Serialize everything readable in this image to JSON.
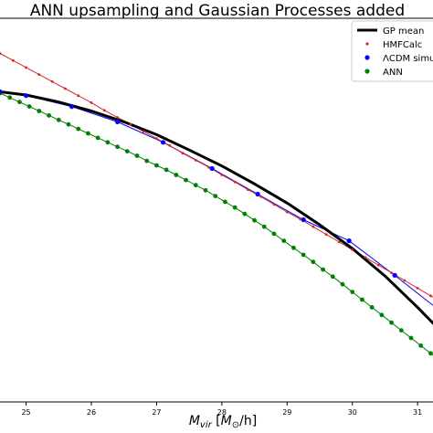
{
  "chart_data": {
    "type": "line",
    "title": "ANN upsampling and Gaussian Processes added",
    "xlabel": "M_vir [M_⊙/h]",
    "xlabel_parts": {
      "main": "M",
      "sub": "vir",
      "open": " [",
      "unit": "M",
      "unit_sub": "⊙",
      "close": "/h]"
    },
    "ylabel": "",
    "xlim": [
      24.6,
      31.6
    ],
    "ylim": [
      -40,
      20
    ],
    "x_ticks": [
      25,
      26,
      27,
      28,
      29,
      30,
      31
    ],
    "x_tick_labels": [
      "25",
      "26",
      "27",
      "28",
      "29",
      "30",
      "31"
    ],
    "grid": false,
    "legend_position": "top-right",
    "series": [
      {
        "name": "GP mean",
        "role": "gp",
        "color": "#000000",
        "x": [
          24.6,
          25.0,
          25.5,
          26.0,
          26.5,
          27.0,
          27.5,
          28.0,
          28.5,
          29.0,
          29.5,
          30.0,
          30.5,
          31.0,
          31.6
        ],
        "y": [
          8.5,
          8.0,
          6.9,
          5.5,
          3.8,
          1.8,
          -0.6,
          -3.1,
          -5.9,
          -8.9,
          -12.3,
          -16.0,
          -20.3,
          -25.2,
          -31.5
        ]
      },
      {
        "name": "HMFCalc",
        "role": "hmf",
        "color": "#d62728",
        "x": [
          24.6,
          24.8,
          25.0,
          25.2,
          25.4,
          25.6,
          25.8,
          26.0,
          26.2,
          26.4,
          26.6,
          26.8,
          27.0,
          27.2,
          27.4,
          27.6,
          27.8,
          28.0,
          28.2,
          28.4,
          28.6,
          28.8,
          29.0,
          29.2,
          29.4,
          29.6,
          29.8,
          30.0,
          30.2,
          30.4,
          30.6,
          30.8,
          31.0,
          31.2,
          31.4,
          31.6
        ],
        "y": [
          14.5,
          13.4,
          12.3,
          11.2,
          10.1,
          9.0,
          7.9,
          6.8,
          5.6,
          4.5,
          3.4,
          2.3,
          1.2,
          0.1,
          -1.1,
          -2.2,
          -3.3,
          -4.5,
          -5.6,
          -6.8,
          -7.9,
          -9.1,
          -10.3,
          -11.4,
          -12.6,
          -13.8,
          -15.0,
          -16.2,
          -17.4,
          -18.6,
          -19.8,
          -21.0,
          -22.2,
          -23.4,
          -24.6,
          -25.8
        ]
      },
      {
        "name": "ΛCDM simulations",
        "role": "sim",
        "color": "#0000ff",
        "x": [
          24.6,
          25.0,
          25.7,
          26.4,
          27.1,
          27.85,
          28.55,
          29.25,
          29.95,
          30.65,
          31.35,
          31.6
        ],
        "y": [
          8.5,
          7.9,
          6.2,
          3.8,
          0.6,
          -3.5,
          -7.5,
          -11.5,
          -14.8,
          -20.2,
          -25.8,
          -30.0
        ]
      },
      {
        "name": "ANN",
        "role": "ann",
        "color": "#008000",
        "x": [
          24.6,
          24.75,
          24.9,
          25.05,
          25.2,
          25.35,
          25.5,
          25.65,
          25.8,
          25.95,
          26.1,
          26.25,
          26.4,
          26.55,
          26.7,
          26.85,
          27.0,
          27.15,
          27.3,
          27.45,
          27.6,
          27.75,
          27.9,
          28.05,
          28.2,
          28.35,
          28.5,
          28.65,
          28.8,
          28.95,
          29.1,
          29.25,
          29.4,
          29.55,
          29.7,
          29.85,
          30.0,
          30.15,
          30.3,
          30.45,
          30.6,
          30.75,
          30.9,
          31.05,
          31.2,
          31.35,
          31.5
        ],
        "y": [
          8.3,
          7.6,
          6.9,
          6.2,
          5.5,
          4.8,
          4.1,
          3.4,
          2.7,
          2.0,
          1.3,
          0.6,
          -0.1,
          -0.8,
          -1.5,
          -2.3,
          -3.0,
          -3.7,
          -4.5,
          -5.3,
          -6.1,
          -6.9,
          -7.8,
          -8.7,
          -9.6,
          -10.6,
          -11.6,
          -12.6,
          -13.7,
          -14.8,
          -15.9,
          -17.0,
          -18.1,
          -19.3,
          -20.4,
          -21.6,
          -22.8,
          -24.0,
          -25.2,
          -26.4,
          -27.6,
          -28.8,
          -30.0,
          -31.2,
          -32.4,
          -33.6,
          -34.8
        ]
      }
    ]
  }
}
